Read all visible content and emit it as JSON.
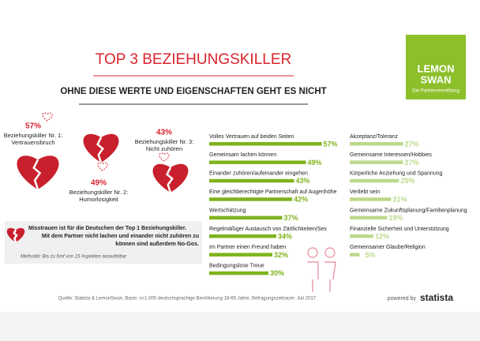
{
  "header": {
    "title": "TOP 3 BEZIEHUNGSKILLER",
    "subtitle": "OHNE DIESE WERTE UND EIGENSCHAFTEN GEHT ES NICHT"
  },
  "brand": {
    "line1": "LEMON",
    "line2": "SWAN",
    "tagline": "Die Partnervermittlung"
  },
  "killers": [
    {
      "percent": "57%",
      "line1": "Beziehungskiller Nr. 1:",
      "line2": "Vertrauensbruch"
    },
    {
      "percent": "49%",
      "line1": "Beziehungskiller Nr. 2:",
      "line2": "Humorlosigkeit"
    },
    {
      "percent": "43%",
      "line1": "Beziehungskiller Nr. 3:",
      "line2": "Nicht zuhören"
    }
  ],
  "chart_data": [
    {
      "type": "bar",
      "color": "#7fb31c",
      "categories": [
        "Volles Vertrauen auf beiden Seiten",
        "Gemeinsam lachen können",
        "Einander zuhören/aufeinander eingehen",
        "Eine gleichberechtigte Partnerschaft auf Augenhöhe",
        "Wertschätzung",
        "Regelmäßiger Austausch von Zärtlichkeiten/Sex",
        "Im Partner einen Freund haben",
        "Bedingungslose Treue"
      ],
      "values": [
        57,
        49,
        43,
        42,
        37,
        34,
        32,
        30
      ],
      "value_labels": [
        "57%",
        "49%",
        "43%",
        "42%",
        "37%",
        "34%",
        "32%",
        "30%"
      ]
    },
    {
      "type": "bar",
      "color": "#bcd98c",
      "categories": [
        "Akzeptanz/Toleranz",
        "Gemeinsame Interessen/Hobbies",
        "Körperliche Anziehung und Spannung",
        "Verliebt sein",
        "Gemeinsame Zukunftsplanung/Familienplanung",
        "Finanzielle Sicherheit und Unterstützung",
        "Gemeinsamer Glaube/Religion"
      ],
      "values": [
        27,
        27,
        25,
        21,
        19,
        12,
        5
      ],
      "value_labels": [
        "27%",
        "27%",
        "25%",
        "21%",
        "19%",
        "12%",
        "5%"
      ]
    }
  ],
  "note": {
    "lines": [
      "Misstrauen ist für die Deutschen der Top 1 Beziehungskiller.",
      "Mit dem Partner nicht lachen und einander nicht zuhören zu",
      "können sind außerdem No-Gos."
    ],
    "method": "Methodik: Bis zu fünf von 15 Aspekten auswählbar"
  },
  "footer": {
    "source": "Quelle: Statista & LemonSwan, Basis: n=1.000 deutschsprachige Bevölkerung 18-65 Jahre, Befragungszeitraum: Juli 2017",
    "powered": "powered by",
    "statista": "statista"
  }
}
